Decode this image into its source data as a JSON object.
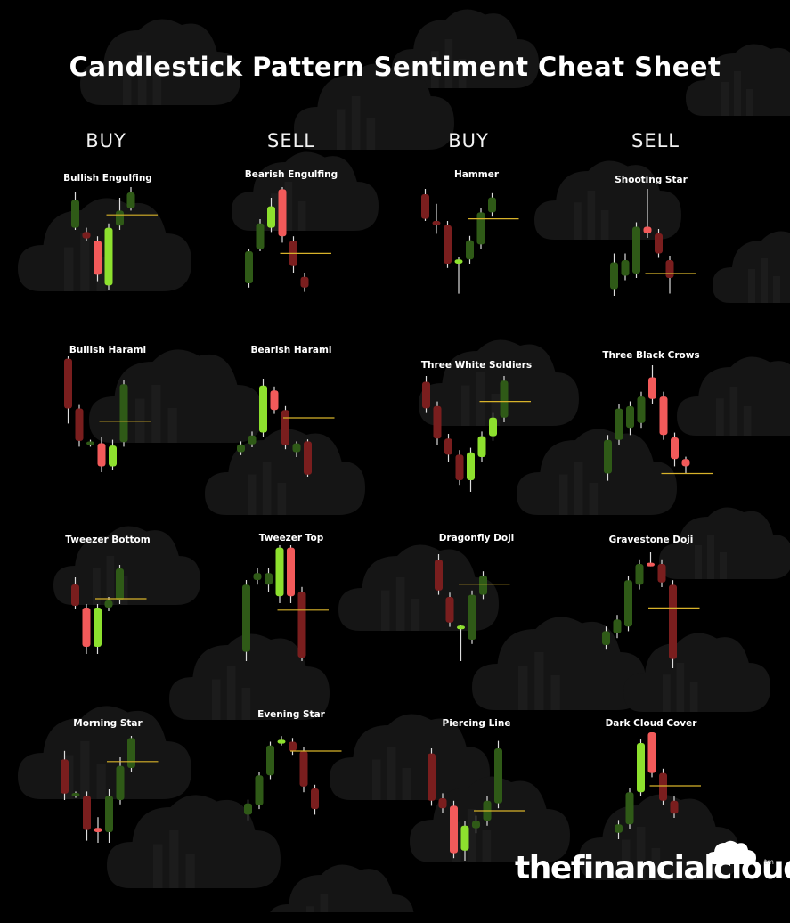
{
  "title": "Candlestick Pattern Sentiment Cheat Sheet",
  "columns": [
    "BUY",
    "SELL",
    "BUY",
    "SELL"
  ],
  "brand": {
    "name": "thefinancialcloud",
    "tm": "tm"
  },
  "colors": {
    "bull_bright": "#8de02e",
    "bull_dark": "#2f5a17",
    "bear_bright": "#f25a5a",
    "bear_dark": "#7a1e1e",
    "wick": "#dddddd",
    "signal_line": "#d7b22a",
    "cloud": "#151515"
  },
  "patterns": [
    {
      "name": "Bullish Engulfing",
      "candles": [
        {
          "o": 0.88,
          "c": 0.62,
          "h": 0.95,
          "l": 0.6,
          "t": "dark-green"
        },
        {
          "o": 0.58,
          "c": 0.52,
          "h": 0.62,
          "l": 0.5,
          "t": "dark-red"
        },
        {
          "o": 0.5,
          "c": 0.18,
          "h": 0.54,
          "l": 0.12,
          "t": "bright-red"
        },
        {
          "o": 0.08,
          "c": 0.62,
          "h": 0.66,
          "l": 0.04,
          "t": "bright-green"
        },
        {
          "o": 0.64,
          "c": 0.78,
          "h": 0.9,
          "l": 0.6,
          "t": "dark-green"
        },
        {
          "o": 0.8,
          "c": 0.95,
          "h": 1.0,
          "l": 0.78,
          "t": "dark-green"
        }
      ],
      "signal": 0.74
    },
    {
      "name": "Bearish Engulfing",
      "candles": [
        {
          "o": 0.1,
          "c": 0.4,
          "h": 0.42,
          "l": 0.06,
          "t": "dark-green"
        },
        {
          "o": 0.42,
          "c": 0.66,
          "h": 0.7,
          "l": 0.4,
          "t": "dark-green"
        },
        {
          "o": 0.62,
          "c": 0.82,
          "h": 0.9,
          "l": 0.58,
          "t": "bright-green"
        },
        {
          "o": 0.98,
          "c": 0.54,
          "h": 1.0,
          "l": 0.48,
          "t": "bright-red"
        },
        {
          "o": 0.5,
          "c": 0.26,
          "h": 0.54,
          "l": 0.2,
          "t": "dark-red"
        },
        {
          "o": 0.16,
          "c": 0.06,
          "h": 0.2,
          "l": 0.02,
          "t": "dark-red"
        }
      ],
      "signal": 0.38
    },
    {
      "name": "Hammer",
      "candles": [
        {
          "o": 0.95,
          "c": 0.72,
          "h": 1.0,
          "l": 0.7,
          "t": "dark-red"
        },
        {
          "o": 0.7,
          "c": 0.66,
          "h": 0.86,
          "l": 0.58,
          "t": "dark-red"
        },
        {
          "o": 0.66,
          "c": 0.3,
          "h": 0.7,
          "l": 0.26,
          "t": "dark-red"
        },
        {
          "o": 0.3,
          "c": 0.34,
          "h": 0.36,
          "l": 0.02,
          "t": "bright-green"
        },
        {
          "o": 0.34,
          "c": 0.52,
          "h": 0.56,
          "l": 0.3,
          "t": "dark-green"
        },
        {
          "o": 0.48,
          "c": 0.78,
          "h": 0.82,
          "l": 0.44,
          "t": "dark-green"
        },
        {
          "o": 0.78,
          "c": 0.92,
          "h": 0.96,
          "l": 0.74,
          "t": "dark-green"
        }
      ],
      "signal": 0.72
    },
    {
      "name": "Shooting Star",
      "candles": [
        {
          "o": 0.1,
          "c": 0.34,
          "h": 0.42,
          "l": 0.04,
          "t": "dark-green"
        },
        {
          "o": 0.22,
          "c": 0.36,
          "h": 0.42,
          "l": 0.18,
          "t": "dark-green"
        },
        {
          "o": 0.24,
          "c": 0.66,
          "h": 0.7,
          "l": 0.2,
          "t": "dark-green"
        },
        {
          "o": 0.66,
          "c": 0.6,
          "h": 1.0,
          "l": 0.56,
          "t": "bright-red"
        },
        {
          "o": 0.6,
          "c": 0.42,
          "h": 0.64,
          "l": 0.38,
          "t": "dark-red"
        },
        {
          "o": 0.36,
          "c": 0.2,
          "h": 0.4,
          "l": 0.06,
          "t": "dark-red"
        }
      ],
      "signal": 0.24
    },
    {
      "name": "Bullish Harami",
      "candles": [
        {
          "o": 0.98,
          "c": 0.55,
          "h": 1.0,
          "l": 0.42,
          "t": "dark-red"
        },
        {
          "o": 0.55,
          "c": 0.27,
          "h": 0.58,
          "l": 0.22,
          "t": "dark-red"
        },
        {
          "o": 0.26,
          "c": 0.24,
          "h": 0.28,
          "l": 0.22,
          "t": "dark-green"
        },
        {
          "o": 0.25,
          "c": 0.05,
          "h": 0.3,
          "l": 0.0,
          "t": "bright-red"
        },
        {
          "o": 0.05,
          "c": 0.23,
          "h": 0.28,
          "l": 0.02,
          "t": "bright-green"
        },
        {
          "o": 0.26,
          "c": 0.76,
          "h": 0.8,
          "l": 0.22,
          "t": "dark-green"
        }
      ],
      "signal": 0.44
    },
    {
      "name": "Bearish Harami",
      "candles": [
        {
          "o": 0.25,
          "c": 0.33,
          "h": 0.36,
          "l": 0.22,
          "t": "dark-green"
        },
        {
          "o": 0.33,
          "c": 0.42,
          "h": 0.46,
          "l": 0.3,
          "t": "dark-green"
        },
        {
          "o": 0.45,
          "c": 0.93,
          "h": 1.0,
          "l": 0.4,
          "t": "bright-green"
        },
        {
          "o": 0.88,
          "c": 0.68,
          "h": 0.92,
          "l": 0.64,
          "t": "bright-red"
        },
        {
          "o": 0.68,
          "c": 0.32,
          "h": 0.72,
          "l": 0.28,
          "t": "dark-red"
        },
        {
          "o": 0.34,
          "c": 0.25,
          "h": 0.36,
          "l": 0.2,
          "t": "dark-green"
        },
        {
          "o": 0.36,
          "c": 0.02,
          "h": 0.38,
          "l": 0.0,
          "t": "dark-red"
        }
      ],
      "signal": 0.6
    },
    {
      "name": "Three White Soldiers",
      "candles": [
        {
          "o": 0.95,
          "c": 0.72,
          "h": 1.0,
          "l": 0.68,
          "t": "dark-red"
        },
        {
          "o": 0.74,
          "c": 0.46,
          "h": 0.78,
          "l": 0.4,
          "t": "dark-red"
        },
        {
          "o": 0.46,
          "c": 0.32,
          "h": 0.5,
          "l": 0.26,
          "t": "dark-red"
        },
        {
          "o": 0.32,
          "c": 0.1,
          "h": 0.36,
          "l": 0.06,
          "t": "dark-red"
        },
        {
          "o": 0.1,
          "c": 0.34,
          "h": 0.38,
          "l": 0.0,
          "t": "bright-green"
        },
        {
          "o": 0.3,
          "c": 0.48,
          "h": 0.52,
          "l": 0.26,
          "t": "bright-green"
        },
        {
          "o": 0.48,
          "c": 0.64,
          "h": 0.68,
          "l": 0.44,
          "t": "bright-green"
        },
        {
          "o": 0.64,
          "c": 0.96,
          "h": 1.0,
          "l": 0.6,
          "t": "dark-green"
        }
      ],
      "signal": 0.78
    },
    {
      "name": "Three Black Crows",
      "candles": [
        {
          "o": 0.1,
          "c": 0.38,
          "h": 0.42,
          "l": 0.04,
          "t": "dark-green"
        },
        {
          "o": 0.38,
          "c": 0.64,
          "h": 0.68,
          "l": 0.34,
          "t": "dark-green"
        },
        {
          "o": 0.48,
          "c": 0.66,
          "h": 0.7,
          "l": 0.42,
          "t": "dark-green"
        },
        {
          "o": 0.52,
          "c": 0.74,
          "h": 0.78,
          "l": 0.48,
          "t": "dark-green"
        },
        {
          "o": 0.9,
          "c": 0.72,
          "h": 1.0,
          "l": 0.68,
          "t": "bright-red"
        },
        {
          "o": 0.74,
          "c": 0.42,
          "h": 0.78,
          "l": 0.38,
          "t": "bright-red"
        },
        {
          "o": 0.4,
          "c": 0.22,
          "h": 0.44,
          "l": 0.16,
          "t": "bright-red"
        },
        {
          "o": 0.22,
          "c": 0.16,
          "h": 0.24,
          "l": 0.1,
          "t": "bright-red"
        }
      ],
      "signal": 0.1
    },
    {
      "name": "Tweezer Bottom",
      "candles": [
        {
          "o": 0.78,
          "c": 0.54,
          "h": 0.86,
          "l": 0.5,
          "t": "dark-red"
        },
        {
          "o": 0.52,
          "c": 0.08,
          "h": 0.56,
          "l": 0.0,
          "t": "bright-red"
        },
        {
          "o": 0.08,
          "c": 0.52,
          "h": 0.56,
          "l": 0.0,
          "t": "bright-green"
        },
        {
          "o": 0.52,
          "c": 0.6,
          "h": 0.64,
          "l": 0.48,
          "t": "dark-green"
        },
        {
          "o": 0.6,
          "c": 0.96,
          "h": 1.0,
          "l": 0.56,
          "t": "dark-green"
        }
      ],
      "signal": 0.62
    },
    {
      "name": "Tweezer Top",
      "candles": [
        {
          "o": 0.08,
          "c": 0.66,
          "h": 0.7,
          "l": 0.0,
          "t": "dark-green"
        },
        {
          "o": 0.7,
          "c": 0.76,
          "h": 0.8,
          "l": 0.66,
          "t": "dark-green"
        },
        {
          "o": 0.66,
          "c": 0.76,
          "h": 0.8,
          "l": 0.6,
          "t": "dark-green"
        },
        {
          "o": 0.56,
          "c": 0.98,
          "h": 1.0,
          "l": 0.5,
          "t": "bright-green"
        },
        {
          "o": 0.98,
          "c": 0.56,
          "h": 1.0,
          "l": 0.5,
          "t": "bright-red"
        },
        {
          "o": 0.6,
          "c": 0.03,
          "h": 0.64,
          "l": 0.0,
          "t": "dark-red"
        }
      ],
      "signal": 0.44
    },
    {
      "name": "Dragonfly Doji",
      "candles": [
        {
          "o": 0.95,
          "c": 0.66,
          "h": 1.0,
          "l": 0.62,
          "t": "dark-red"
        },
        {
          "o": 0.6,
          "c": 0.36,
          "h": 0.64,
          "l": 0.32,
          "t": "dark-red"
        },
        {
          "o": 0.32,
          "c": 0.31,
          "h": 0.34,
          "l": 0.0,
          "t": "bright-green"
        },
        {
          "o": 0.2,
          "c": 0.62,
          "h": 0.66,
          "l": 0.16,
          "t": "dark-green"
        },
        {
          "o": 0.62,
          "c": 0.8,
          "h": 0.84,
          "l": 0.58,
          "t": "dark-green"
        }
      ],
      "signal": 0.72
    },
    {
      "name": "Gravestone Doji",
      "candles": [
        {
          "o": 0.2,
          "c": 0.32,
          "h": 0.36,
          "l": 0.16,
          "t": "dark-green"
        },
        {
          "o": 0.3,
          "c": 0.42,
          "h": 0.46,
          "l": 0.26,
          "t": "dark-green"
        },
        {
          "o": 0.36,
          "c": 0.76,
          "h": 0.8,
          "l": 0.32,
          "t": "dark-green"
        },
        {
          "o": 0.72,
          "c": 0.9,
          "h": 0.94,
          "l": 0.68,
          "t": "dark-green"
        },
        {
          "o": 0.9,
          "c": 0.89,
          "h": 1.0,
          "l": 0.88,
          "t": "bright-red"
        },
        {
          "o": 0.9,
          "c": 0.74,
          "h": 0.94,
          "l": 0.7,
          "t": "dark-red"
        },
        {
          "o": 0.72,
          "c": 0.08,
          "h": 0.76,
          "l": 0.0,
          "t": "dark-red"
        }
      ],
      "signal": 0.52
    },
    {
      "name": "Morning Star",
      "candles": [
        {
          "o": 0.78,
          "c": 0.46,
          "h": 0.86,
          "l": 0.4,
          "t": "dark-red"
        },
        {
          "o": 0.46,
          "c": 0.44,
          "h": 0.48,
          "l": 0.42,
          "t": "dark-green"
        },
        {
          "o": 0.44,
          "c": 0.12,
          "h": 0.48,
          "l": 0.02,
          "t": "dark-red"
        },
        {
          "o": 0.14,
          "c": 0.1,
          "h": 0.24,
          "l": 0.0,
          "t": "bright-red"
        },
        {
          "o": 0.1,
          "c": 0.44,
          "h": 0.5,
          "l": 0.0,
          "t": "dark-green"
        },
        {
          "o": 0.4,
          "c": 0.72,
          "h": 0.8,
          "l": 0.36,
          "t": "dark-green"
        },
        {
          "o": 0.7,
          "c": 0.98,
          "h": 1.0,
          "l": 0.66,
          "t": "dark-green"
        }
      ],
      "signal": 0.76
    },
    {
      "name": "Evening Star",
      "candles": [
        {
          "o": 0.12,
          "c": 0.24,
          "h": 0.28,
          "l": 0.06,
          "t": "dark-green"
        },
        {
          "o": 0.22,
          "c": 0.54,
          "h": 0.58,
          "l": 0.18,
          "t": "dark-green"
        },
        {
          "o": 0.54,
          "c": 0.86,
          "h": 0.9,
          "l": 0.5,
          "t": "dark-green"
        },
        {
          "o": 0.92,
          "c": 0.88,
          "h": 0.96,
          "l": 0.86,
          "t": "bright-green"
        },
        {
          "o": 0.9,
          "c": 0.8,
          "h": 0.94,
          "l": 0.76,
          "t": "dark-red"
        },
        {
          "o": 0.8,
          "c": 0.42,
          "h": 0.84,
          "l": 0.36,
          "t": "dark-red"
        },
        {
          "o": 0.4,
          "c": 0.18,
          "h": 0.44,
          "l": 0.12,
          "t": "dark-red"
        }
      ],
      "signal": 0.8
    },
    {
      "name": "Piercing Line",
      "candles": [
        {
          "o": 0.86,
          "c": 0.48,
          "h": 0.9,
          "l": 0.44,
          "t": "dark-red"
        },
        {
          "o": 0.5,
          "c": 0.42,
          "h": 0.54,
          "l": 0.38,
          "t": "dark-red"
        },
        {
          "o": 0.44,
          "c": 0.06,
          "h": 0.48,
          "l": 0.02,
          "t": "bright-red"
        },
        {
          "o": 0.08,
          "c": 0.28,
          "h": 0.32,
          "l": 0.0,
          "t": "bright-green"
        },
        {
          "o": 0.26,
          "c": 0.32,
          "h": 0.36,
          "l": 0.22,
          "t": "dark-green"
        },
        {
          "o": 0.32,
          "c": 0.48,
          "h": 0.52,
          "l": 0.28,
          "t": "dark-green"
        },
        {
          "o": 0.46,
          "c": 0.9,
          "h": 0.96,
          "l": 0.42,
          "t": "dark-green"
        }
      ],
      "signal": 0.4
    },
    {
      "name": "Dark Cloud Cover",
      "candles": [
        {
          "o": 0.06,
          "c": 0.14,
          "h": 0.18,
          "l": 0.0,
          "t": "dark-green"
        },
        {
          "o": 0.14,
          "c": 0.44,
          "h": 0.48,
          "l": 0.1,
          "t": "dark-green"
        },
        {
          "o": 0.44,
          "c": 0.9,
          "h": 0.94,
          "l": 0.4,
          "t": "bright-green"
        },
        {
          "o": 1.0,
          "c": 0.62,
          "h": 1.0,
          "l": 0.58,
          "t": "bright-red"
        },
        {
          "o": 0.62,
          "c": 0.36,
          "h": 0.66,
          "l": 0.32,
          "t": "dark-red"
        },
        {
          "o": 0.36,
          "c": 0.24,
          "h": 0.4,
          "l": 0.2,
          "t": "dark-red"
        }
      ],
      "signal": 0.5
    }
  ]
}
